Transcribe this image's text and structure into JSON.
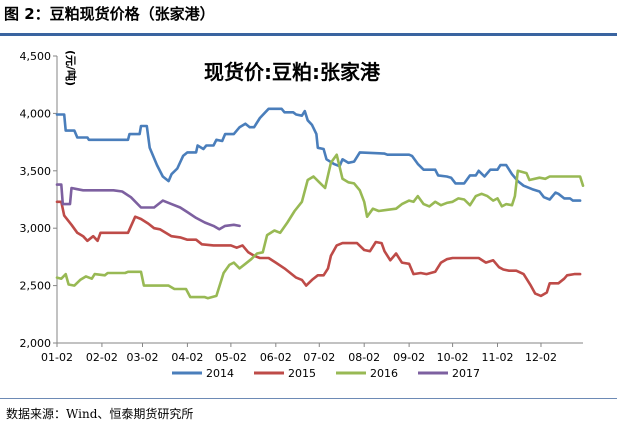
{
  "figure": {
    "caption": "图 2：豆粕现货价格（张家港）",
    "source": "数据来源：Wind、恒泰期货研究所"
  },
  "chart_data": {
    "type": "line",
    "title": "现货价:豆粕:张家港",
    "xlabel": "",
    "ylabel": "(元/吨)",
    "ylim": [
      2000,
      4500
    ],
    "yticks": [
      "2,000",
      "2,500",
      "3,000",
      "3,500",
      "4,000",
      "4,500"
    ],
    "x_tick_labels": [
      "01-02",
      "02-02",
      "03-02",
      "04-02",
      "05-02",
      "06-02",
      "07-02",
      "08-02",
      "09-02",
      "10-02",
      "11-02",
      "12-02"
    ],
    "grid": false,
    "legend_position": "bottom",
    "series": [
      {
        "name": "2014",
        "color": "#4a7ebb",
        "points": [
          [
            "01-02",
            3990
          ],
          [
            "01-07",
            3990
          ],
          [
            "01-08",
            3850
          ],
          [
            "01-14",
            3850
          ],
          [
            "01-16",
            3790
          ],
          [
            "01-23",
            3790
          ],
          [
            "01-24",
            3770
          ],
          [
            "02-20",
            3770
          ],
          [
            "02-21",
            3820
          ],
          [
            "02-28",
            3820
          ],
          [
            "03-01",
            3890
          ],
          [
            "03-05",
            3890
          ],
          [
            "03-07",
            3700
          ],
          [
            "03-12",
            3550
          ],
          [
            "03-16",
            3450
          ],
          [
            "03-20",
            3410
          ],
          [
            "03-22",
            3470
          ],
          [
            "03-26",
            3520
          ],
          [
            "03-30",
            3630
          ],
          [
            "04-02",
            3660
          ],
          [
            "04-08",
            3660
          ],
          [
            "04-09",
            3720
          ],
          [
            "04-13",
            3690
          ],
          [
            "04-15",
            3720
          ],
          [
            "04-20",
            3720
          ],
          [
            "04-22",
            3770
          ],
          [
            "04-26",
            3760
          ],
          [
            "04-28",
            3820
          ],
          [
            "05-04",
            3820
          ],
          [
            "05-08",
            3880
          ],
          [
            "05-12",
            3910
          ],
          [
            "05-15",
            3880
          ],
          [
            "05-18",
            3880
          ],
          [
            "05-22",
            3960
          ],
          [
            "05-28",
            4040
          ],
          [
            "06-06",
            4040
          ],
          [
            "06-08",
            4010
          ],
          [
            "06-14",
            4010
          ],
          [
            "06-16",
            3990
          ],
          [
            "06-20",
            3980
          ],
          [
            "06-22",
            4020
          ],
          [
            "06-24",
            3940
          ],
          [
            "06-27",
            3900
          ],
          [
            "06-30",
            3820
          ],
          [
            "07-01",
            3700
          ],
          [
            "07-05",
            3690
          ],
          [
            "07-07",
            3600
          ],
          [
            "07-12",
            3560
          ],
          [
            "07-16",
            3540
          ],
          [
            "07-18",
            3600
          ],
          [
            "07-22",
            3570
          ],
          [
            "07-26",
            3580
          ],
          [
            "07-30",
            3660
          ],
          [
            "08-16",
            3650
          ],
          [
            "08-18",
            3640
          ],
          [
            "09-02",
            3640
          ],
          [
            "09-04",
            3630
          ],
          [
            "09-08",
            3560
          ],
          [
            "09-12",
            3510
          ],
          [
            "09-20",
            3510
          ],
          [
            "09-22",
            3460
          ],
          [
            "09-28",
            3450
          ],
          [
            "10-01",
            3440
          ],
          [
            "10-04",
            3390
          ],
          [
            "10-10",
            3390
          ],
          [
            "10-14",
            3460
          ],
          [
            "10-18",
            3460
          ],
          [
            "10-20",
            3500
          ],
          [
            "10-24",
            3450
          ],
          [
            "10-28",
            3510
          ],
          [
            "11-02",
            3510
          ],
          [
            "11-04",
            3550
          ],
          [
            "11-08",
            3550
          ],
          [
            "11-12",
            3470
          ],
          [
            "11-16",
            3410
          ],
          [
            "11-20",
            3370
          ],
          [
            "11-26",
            3340
          ],
          [
            "12-01",
            3320
          ],
          [
            "12-04",
            3270
          ],
          [
            "12-08",
            3250
          ],
          [
            "12-12",
            3310
          ],
          [
            "12-14",
            3300
          ],
          [
            "12-18",
            3260
          ],
          [
            "12-22",
            3260
          ],
          [
            "12-24",
            3240
          ],
          [
            "12-29",
            3240
          ]
        ]
      },
      {
        "name": "2015",
        "color": "#be4b48",
        "points": [
          [
            "01-02",
            3230
          ],
          [
            "01-05",
            3230
          ],
          [
            "01-07",
            3110
          ],
          [
            "01-12",
            3030
          ],
          [
            "01-16",
            2960
          ],
          [
            "01-20",
            2930
          ],
          [
            "01-23",
            2890
          ],
          [
            "01-27",
            2930
          ],
          [
            "01-30",
            2890
          ],
          [
            "02-01",
            2960
          ],
          [
            "02-20",
            2960
          ],
          [
            "02-25",
            3100
          ],
          [
            "03-01",
            3080
          ],
          [
            "03-06",
            3040
          ],
          [
            "03-10",
            3000
          ],
          [
            "03-14",
            2990
          ],
          [
            "03-18",
            2960
          ],
          [
            "03-22",
            2930
          ],
          [
            "03-28",
            2920
          ],
          [
            "04-02",
            2900
          ],
          [
            "04-08",
            2900
          ],
          [
            "04-12",
            2860
          ],
          [
            "04-20",
            2850
          ],
          [
            "04-28",
            2850
          ],
          [
            "05-02",
            2850
          ],
          [
            "05-06",
            2830
          ],
          [
            "05-10",
            2850
          ],
          [
            "05-14",
            2790
          ],
          [
            "05-18",
            2760
          ],
          [
            "05-22",
            2740
          ],
          [
            "05-28",
            2740
          ],
          [
            "06-02",
            2700
          ],
          [
            "06-08",
            2650
          ],
          [
            "06-12",
            2610
          ],
          [
            "06-16",
            2570
          ],
          [
            "06-20",
            2550
          ],
          [
            "06-23",
            2500
          ],
          [
            "06-27",
            2550
          ],
          [
            "07-01",
            2590
          ],
          [
            "07-05",
            2590
          ],
          [
            "07-08",
            2650
          ],
          [
            "07-10",
            2760
          ],
          [
            "07-14",
            2850
          ],
          [
            "07-18",
            2870
          ],
          [
            "07-28",
            2870
          ],
          [
            "08-02",
            2810
          ],
          [
            "08-06",
            2800
          ],
          [
            "08-10",
            2880
          ],
          [
            "08-14",
            2870
          ],
          [
            "08-16",
            2800
          ],
          [
            "08-20",
            2720
          ],
          [
            "08-24",
            2780
          ],
          [
            "08-28",
            2700
          ],
          [
            "09-02",
            2690
          ],
          [
            "09-05",
            2600
          ],
          [
            "09-10",
            2610
          ],
          [
            "09-14",
            2600
          ],
          [
            "09-20",
            2620
          ],
          [
            "09-24",
            2700
          ],
          [
            "09-28",
            2730
          ],
          [
            "10-02",
            2740
          ],
          [
            "10-20",
            2740
          ],
          [
            "10-25",
            2700
          ],
          [
            "10-30",
            2720
          ],
          [
            "11-03",
            2660
          ],
          [
            "11-06",
            2640
          ],
          [
            "11-10",
            2630
          ],
          [
            "11-15",
            2630
          ],
          [
            "11-20",
            2600
          ],
          [
            "11-25",
            2500
          ],
          [
            "11-28",
            2430
          ],
          [
            "12-02",
            2410
          ],
          [
            "12-06",
            2440
          ],
          [
            "12-08",
            2520
          ],
          [
            "12-14",
            2520
          ],
          [
            "12-18",
            2560
          ],
          [
            "12-20",
            2590
          ],
          [
            "12-25",
            2600
          ],
          [
            "12-29",
            2600
          ]
        ]
      },
      {
        "name": "2016",
        "color": "#98b954",
        "points": [
          [
            "01-02",
            2570
          ],
          [
            "01-05",
            2560
          ],
          [
            "01-08",
            2600
          ],
          [
            "01-10",
            2510
          ],
          [
            "01-14",
            2500
          ],
          [
            "01-18",
            2550
          ],
          [
            "01-22",
            2580
          ],
          [
            "01-26",
            2560
          ],
          [
            "01-28",
            2600
          ],
          [
            "02-04",
            2590
          ],
          [
            "02-06",
            2610
          ],
          [
            "02-18",
            2610
          ],
          [
            "02-20",
            2620
          ],
          [
            "03-01",
            2620
          ],
          [
            "03-03",
            2500
          ],
          [
            "03-20",
            2500
          ],
          [
            "03-24",
            2470
          ],
          [
            "04-01",
            2470
          ],
          [
            "04-04",
            2400
          ],
          [
            "04-14",
            2400
          ],
          [
            "04-16",
            2390
          ],
          [
            "04-22",
            2410
          ],
          [
            "04-27",
            2610
          ],
          [
            "05-01",
            2680
          ],
          [
            "05-04",
            2700
          ],
          [
            "05-08",
            2650
          ],
          [
            "05-12",
            2690
          ],
          [
            "05-16",
            2730
          ],
          [
            "05-20",
            2780
          ],
          [
            "05-24",
            2790
          ],
          [
            "05-27",
            2940
          ],
          [
            "06-01",
            2980
          ],
          [
            "06-05",
            2960
          ],
          [
            "06-10",
            3050
          ],
          [
            "06-15",
            3150
          ],
          [
            "06-20",
            3230
          ],
          [
            "06-24",
            3420
          ],
          [
            "06-28",
            3450
          ],
          [
            "07-02",
            3400
          ],
          [
            "07-06",
            3350
          ],
          [
            "07-10",
            3570
          ],
          [
            "07-14",
            3640
          ],
          [
            "07-18",
            3430
          ],
          [
            "07-22",
            3400
          ],
          [
            "07-26",
            3390
          ],
          [
            "07-30",
            3330
          ],
          [
            "08-02",
            3230
          ],
          [
            "08-04",
            3100
          ],
          [
            "08-08",
            3170
          ],
          [
            "08-12",
            3150
          ],
          [
            "08-18",
            3160
          ],
          [
            "08-24",
            3170
          ],
          [
            "08-28",
            3210
          ],
          [
            "09-02",
            3240
          ],
          [
            "09-05",
            3230
          ],
          [
            "09-08",
            3280
          ],
          [
            "09-12",
            3210
          ],
          [
            "09-16",
            3190
          ],
          [
            "09-20",
            3230
          ],
          [
            "09-24",
            3200
          ],
          [
            "09-28",
            3220
          ],
          [
            "10-02",
            3230
          ],
          [
            "10-06",
            3260
          ],
          [
            "10-10",
            3250
          ],
          [
            "10-14",
            3200
          ],
          [
            "10-18",
            3280
          ],
          [
            "10-22",
            3300
          ],
          [
            "10-26",
            3280
          ],
          [
            "10-30",
            3240
          ],
          [
            "11-02",
            3260
          ],
          [
            "11-05",
            3190
          ],
          [
            "11-08",
            3210
          ],
          [
            "11-12",
            3200
          ],
          [
            "11-14",
            3280
          ],
          [
            "11-16",
            3500
          ],
          [
            "11-22",
            3480
          ],
          [
            "11-24",
            3420
          ],
          [
            "12-01",
            3440
          ],
          [
            "12-05",
            3430
          ],
          [
            "12-08",
            3450
          ],
          [
            "12-29",
            3450
          ],
          [
            "12-31",
            3370
          ]
        ]
      },
      {
        "name": "2017",
        "color": "#7d60a0",
        "points": [
          [
            "01-02",
            3380
          ],
          [
            "01-05",
            3380
          ],
          [
            "01-06",
            3210
          ],
          [
            "01-11",
            3210
          ],
          [
            "01-12",
            3350
          ],
          [
            "01-16",
            3340
          ],
          [
            "01-20",
            3330
          ],
          [
            "02-10",
            3330
          ],
          [
            "02-16",
            3320
          ],
          [
            "02-22",
            3270
          ],
          [
            "03-01",
            3180
          ],
          [
            "03-10",
            3180
          ],
          [
            "03-16",
            3240
          ],
          [
            "03-22",
            3210
          ],
          [
            "03-28",
            3180
          ],
          [
            "04-02",
            3140
          ],
          [
            "04-08",
            3090
          ],
          [
            "04-14",
            3050
          ],
          [
            "04-20",
            3020
          ],
          [
            "04-24",
            2990
          ],
          [
            "04-28",
            3020
          ],
          [
            "05-04",
            3030
          ],
          [
            "05-08",
            3020
          ]
        ]
      }
    ]
  }
}
